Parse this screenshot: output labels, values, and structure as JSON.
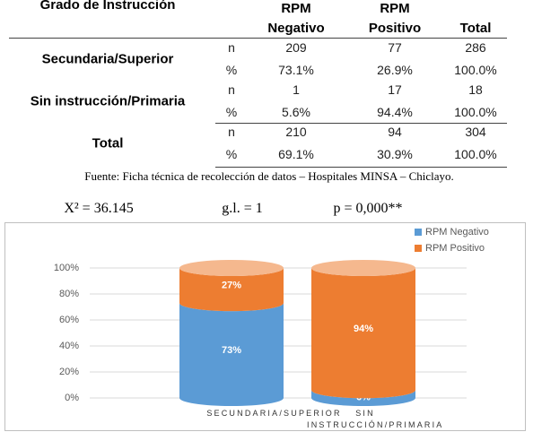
{
  "table": {
    "headers": [
      "Grado de Instrucción",
      "RPM Negativo",
      "RPM Positivo",
      "Total"
    ],
    "groups": [
      {
        "label": "Secundaria/Superior",
        "rows": [
          [
            "n",
            "209",
            "77",
            "286"
          ],
          [
            "%",
            "73.1%",
            "26.9%",
            "100.0%"
          ]
        ]
      },
      {
        "label": "Sin instrucción/Primaria",
        "rows": [
          [
            "n",
            "1",
            "17",
            "18"
          ],
          [
            "%",
            "5.6%",
            "94.4%",
            "100.0%"
          ]
        ]
      },
      {
        "label": "Total",
        "rows": [
          [
            "n",
            "210",
            "94",
            "304"
          ],
          [
            "%",
            "69.1%",
            "30.9%",
            "100.0%"
          ]
        ]
      }
    ]
  },
  "source": "Fuente: Ficha técnica de recolección de datos – Hospitales MINSA – Chiclayo.",
  "statistics": [
    "X² = 36.145",
    "g.l. = 1",
    "p = 0,000**"
  ],
  "chart_data": {
    "type": "stacked-cylinder",
    "categories": [
      "SECUNDARIA/SUPERIOR",
      "SIN INSTRUCCIÓN/PRIMARIA"
    ],
    "series": [
      {
        "name": "RPM Negativo",
        "color": "#5b9bd5",
        "values": [
          73,
          6
        ],
        "value_labels": [
          "73%",
          "6%"
        ]
      },
      {
        "name": "RPM Positivo",
        "color": "#ed7d31",
        "values": [
          27,
          94
        ],
        "value_labels": [
          "27%",
          "94%"
        ]
      }
    ],
    "ylim": [
      0,
      100
    ],
    "yticks": [
      {
        "value": 0,
        "label": "0%"
      },
      {
        "value": 20,
        "label": "20%"
      },
      {
        "value": 40,
        "label": "40%"
      },
      {
        "value": 60,
        "label": "60%"
      },
      {
        "value": 80,
        "label": "80%"
      },
      {
        "value": 100,
        "label": "100%"
      }
    ],
    "grid": true,
    "legend": "top-right"
  }
}
